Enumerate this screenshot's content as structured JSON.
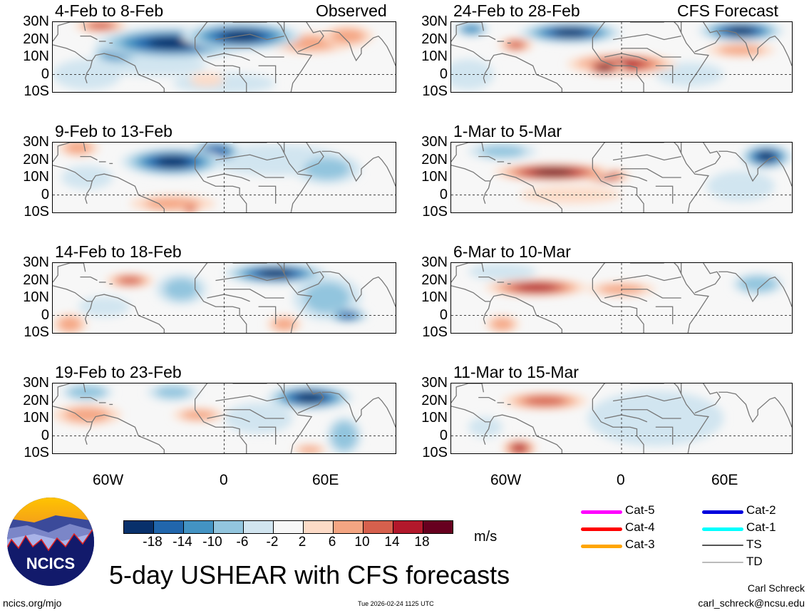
{
  "header": {
    "left_label": "Observed",
    "right_label": "CFS Forecast"
  },
  "lat_labels": [
    "30N",
    "20N",
    "10N",
    "0",
    "10S"
  ],
  "lon_labels": [
    "60W",
    "0",
    "60E"
  ],
  "panels": [
    {
      "title": "4-Feb to 8-Feb",
      "blobs": [
        [
          -30,
          18,
          45,
          8,
          -20
        ],
        [
          10,
          22,
          35,
          7,
          -20
        ],
        [
          -62,
          12,
          15,
          5,
          -14
        ],
        [
          -72,
          28,
          15,
          3,
          10
        ],
        [
          50,
          18,
          25,
          5,
          8
        ],
        [
          72,
          22,
          15,
          5,
          8
        ],
        [
          -80,
          0,
          20,
          8,
          -6
        ],
        [
          0,
          -5,
          30,
          5,
          -4
        ],
        [
          -10,
          -3,
          10,
          3,
          4
        ],
        [
          -40,
          5,
          30,
          5,
          -6
        ]
      ]
    },
    {
      "title": "9-Feb to 13-Feb",
      "blobs": [
        [
          -30,
          19,
          30,
          7,
          -20
        ],
        [
          -5,
          25,
          15,
          5,
          -18
        ],
        [
          -85,
          27,
          12,
          4,
          8
        ],
        [
          30,
          20,
          40,
          8,
          -6
        ],
        [
          60,
          15,
          20,
          8,
          -8
        ],
        [
          -30,
          -5,
          25,
          4,
          6
        ],
        [
          -20,
          -8,
          6,
          2,
          10
        ],
        [
          -80,
          10,
          15,
          6,
          -6
        ]
      ]
    },
    {
      "title": "14-Feb to 18-Feb",
      "blobs": [
        [
          -55,
          20,
          14,
          3,
          10
        ],
        [
          30,
          24,
          30,
          5,
          -20
        ],
        [
          72,
          0,
          12,
          3,
          -16
        ],
        [
          60,
          10,
          20,
          12,
          -8
        ],
        [
          -25,
          15,
          15,
          8,
          -8
        ],
        [
          -90,
          -5,
          10,
          5,
          6
        ],
        [
          35,
          -5,
          10,
          4,
          6
        ],
        [
          -70,
          5,
          15,
          5,
          -4
        ]
      ]
    },
    {
      "title": "19-Feb to 23-Feb",
      "blobs": [
        [
          50,
          22,
          25,
          6,
          -20
        ],
        [
          -80,
          25,
          15,
          4,
          -10
        ],
        [
          -30,
          25,
          15,
          4,
          -8
        ],
        [
          70,
          0,
          10,
          10,
          -10
        ],
        [
          -80,
          12,
          20,
          5,
          8
        ],
        [
          -15,
          12,
          15,
          3,
          6
        ],
        [
          50,
          -8,
          10,
          2,
          6
        ],
        [
          20,
          10,
          20,
          8,
          -6
        ]
      ]
    },
    {
      "title": "24-Feb to 28-Feb",
      "blobs": [
        [
          -30,
          24,
          30,
          5,
          -20
        ],
        [
          70,
          25,
          25,
          5,
          -20
        ],
        [
          -88,
          26,
          10,
          3,
          -14
        ],
        [
          -62,
          17,
          10,
          3,
          12
        ],
        [
          0,
          6,
          32,
          5,
          14
        ],
        [
          -10,
          4,
          12,
          3,
          18
        ],
        [
          70,
          14,
          20,
          3,
          6
        ],
        [
          -90,
          0,
          15,
          8,
          -6
        ],
        [
          40,
          0,
          20,
          6,
          -6
        ]
      ]
    },
    {
      "title": "1-Mar to 5-Mar",
      "blobs": [
        [
          -40,
          13,
          35,
          4,
          18
        ],
        [
          -10,
          11,
          15,
          3,
          14
        ],
        [
          85,
          22,
          15,
          6,
          -20
        ],
        [
          -70,
          25,
          20,
          4,
          -8
        ],
        [
          -30,
          0,
          30,
          4,
          4
        ],
        [
          70,
          5,
          20,
          8,
          -6
        ]
      ]
    },
    {
      "title": "6-Mar to 10-Mar",
      "blobs": [
        [
          -50,
          16,
          30,
          4,
          14
        ],
        [
          0,
          15,
          20,
          3,
          8
        ],
        [
          80,
          18,
          15,
          5,
          -10
        ],
        [
          -70,
          -5,
          10,
          4,
          8
        ],
        [
          -70,
          25,
          20,
          4,
          -6
        ]
      ]
    },
    {
      "title": "11-Mar to 15-Mar",
      "blobs": [
        [
          -45,
          20,
          25,
          4,
          10
        ],
        [
          -60,
          -7,
          10,
          4,
          14
        ],
        [
          20,
          10,
          40,
          15,
          -4
        ],
        [
          -80,
          5,
          10,
          5,
          -4
        ]
      ]
    }
  ],
  "colorbar": {
    "ticks": [
      "-18",
      "-14",
      "-10",
      "-6",
      "-2",
      "2",
      "6",
      "10",
      "14",
      "18"
    ],
    "units": "m/s",
    "colors": [
      "#08306b",
      "#2166ac",
      "#4393c3",
      "#92c5de",
      "#d1e5f0",
      "#f7f7f7",
      "#fddbc7",
      "#f4a582",
      "#d6604d",
      "#b2182b",
      "#67001f"
    ]
  },
  "legend": [
    {
      "label": "Cat-5",
      "color": "#ff00ff"
    },
    {
      "label": "Cat-4",
      "color": "#ff0000"
    },
    {
      "label": "Cat-3",
      "color": "#ffa500"
    },
    {
      "label": "Cat-2",
      "color": "#0000dd"
    },
    {
      "label": "Cat-1",
      "color": "#00ffff"
    },
    {
      "label": "TS",
      "color": "#555555"
    },
    {
      "label": "TD",
      "color": "#bbbbbb"
    }
  ],
  "logo": {
    "text": "NCICS"
  },
  "title": "5-day USHEAR with CFS forecasts",
  "footer": {
    "url": "ncics.org/mjo",
    "timestamp": "Tue 2026-02-24 1125 UTC",
    "author": "Carl Schreck",
    "email": "carl_schreck@ncsu.edu"
  }
}
